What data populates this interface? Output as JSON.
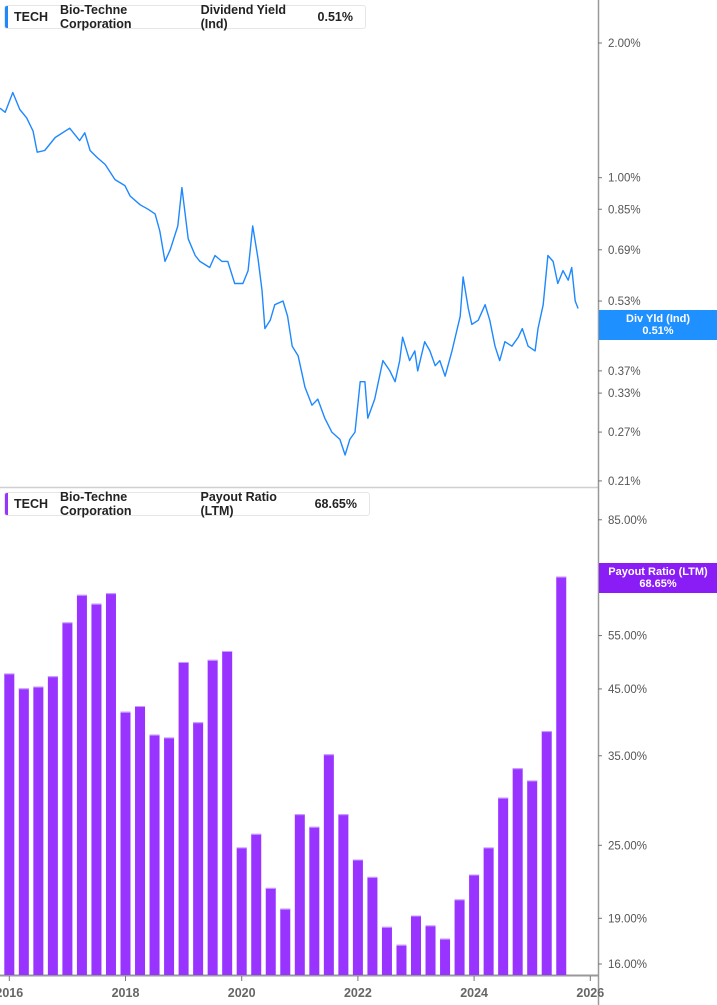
{
  "colors": {
    "yield_line": "#1e88ff",
    "payout_bar": "#9933ff",
    "yield_tag": "#1e90ff",
    "payout_tag": "#8a1cf6",
    "axis": "#999999"
  },
  "top_legend": {
    "ticker": "TECH",
    "company": "Bio-Techne Corporation",
    "metric": "Dividend Yield (Ind)",
    "value": "0.51%"
  },
  "bottom_legend": {
    "ticker": "TECH",
    "company": "Bio-Techne Corporation",
    "metric": "Payout Ratio (LTM)",
    "value": "68.65%"
  },
  "top_tag": {
    "label": "Div Yld (Ind)",
    "value": "0.51%"
  },
  "bottom_tag": {
    "label": "Payout Ratio (LTM)",
    "value": "68.65%"
  },
  "x_ticks": [
    "2016",
    "2018",
    "2020",
    "2022",
    "2024",
    "2026"
  ],
  "chart_data": [
    {
      "type": "line",
      "series": [
        {
          "name": "Dividend Yield (Ind)",
          "unit": "%"
        }
      ],
      "y_scale": "log",
      "y_ticks": [
        {
          "v": 2.0,
          "label": "2.00%"
        },
        {
          "v": 1.0,
          "label": "1.00%"
        },
        {
          "v": 0.85,
          "label": "0.85%"
        },
        {
          "v": 0.69,
          "label": "0.69%"
        },
        {
          "v": 0.53,
          "label": "0.53%"
        },
        {
          "v": 0.37,
          "label": "0.37%"
        },
        {
          "v": 0.33,
          "label": "0.33%"
        },
        {
          "v": 0.27,
          "label": "0.27%"
        },
        {
          "v": 0.21,
          "label": "0.21%"
        }
      ],
      "x": [
        2015.84,
        2015.93,
        2016.06,
        2016.18,
        2016.3,
        2016.41,
        2016.48,
        2016.61,
        2016.79,
        2017.04,
        2017.21,
        2017.3,
        2017.39,
        2017.51,
        2017.65,
        2017.82,
        2017.99,
        2018.08,
        2018.25,
        2018.39,
        2018.51,
        2018.59,
        2018.68,
        2018.77,
        2018.9,
        2018.97,
        2019.08,
        2019.2,
        2019.28,
        2019.45,
        2019.54,
        2019.66,
        2019.76,
        2019.88,
        2020.02,
        2020.11,
        2020.19,
        2020.28,
        2020.35,
        2020.4,
        2020.49,
        2020.57,
        2020.71,
        2020.79,
        2020.87,
        2020.97,
        2021.09,
        2021.21,
        2021.31,
        2021.43,
        2021.55,
        2021.69,
        2021.78,
        2021.86,
        2021.95,
        2022.04,
        2022.12,
        2022.17,
        2022.29,
        2022.43,
        2022.55,
        2022.64,
        2022.72,
        2022.77,
        2022.89,
        2022.98,
        2023.03,
        2023.15,
        2023.24,
        2023.33,
        2023.41,
        2023.5,
        2023.62,
        2023.76,
        2023.81,
        2023.9,
        2023.96,
        2024.07,
        2024.19,
        2024.27,
        2024.36,
        2024.44,
        2024.53,
        2024.65,
        2024.76,
        2024.83,
        2024.93,
        2025.05,
        2025.1,
        2025.19,
        2025.27,
        2025.36,
        2025.44,
        2025.53,
        2025.62,
        2025.68,
        2025.74,
        2025.79
      ],
      "y": [
        1.43,
        1.4,
        1.55,
        1.42,
        1.36,
        1.27,
        1.14,
        1.15,
        1.23,
        1.29,
        1.21,
        1.26,
        1.15,
        1.11,
        1.07,
        0.99,
        0.96,
        0.91,
        0.87,
        0.85,
        0.83,
        0.76,
        0.65,
        0.69,
        0.78,
        0.95,
        0.73,
        0.67,
        0.65,
        0.63,
        0.67,
        0.65,
        0.65,
        0.58,
        0.58,
        0.62,
        0.78,
        0.66,
        0.56,
        0.46,
        0.48,
        0.52,
        0.53,
        0.49,
        0.42,
        0.4,
        0.34,
        0.31,
        0.32,
        0.29,
        0.27,
        0.26,
        0.24,
        0.26,
        0.27,
        0.35,
        0.35,
        0.29,
        0.32,
        0.39,
        0.37,
        0.35,
        0.39,
        0.44,
        0.39,
        0.41,
        0.37,
        0.43,
        0.41,
        0.38,
        0.39,
        0.36,
        0.41,
        0.49,
        0.6,
        0.51,
        0.47,
        0.48,
        0.52,
        0.48,
        0.42,
        0.39,
        0.43,
        0.42,
        0.44,
        0.46,
        0.42,
        0.41,
        0.46,
        0.52,
        0.67,
        0.65,
        0.58,
        0.62,
        0.59,
        0.63,
        0.53,
        0.51
      ]
    },
    {
      "type": "bar",
      "series": [
        {
          "name": "Payout Ratio (LTM)",
          "unit": "%"
        }
      ],
      "y_scale": "log",
      "y_ticks": [
        {
          "v": 85,
          "label": "85.00%"
        },
        {
          "v": 55,
          "label": "55.00%"
        },
        {
          "v": 45,
          "label": "45.00%"
        },
        {
          "v": 35,
          "label": "35.00%"
        },
        {
          "v": 25,
          "label": "25.00%"
        },
        {
          "v": 19,
          "label": "19.00%"
        },
        {
          "v": 16,
          "label": "16.00%"
        }
      ],
      "x": [
        2016.0,
        2016.25,
        2016.5,
        2016.75,
        2017.0,
        2017.25,
        2017.5,
        2017.75,
        2018.0,
        2018.25,
        2018.5,
        2018.75,
        2019.0,
        2019.25,
        2019.5,
        2019.75,
        2020.0,
        2020.25,
        2020.5,
        2020.75,
        2021.0,
        2021.25,
        2021.5,
        2021.75,
        2022.0,
        2022.25,
        2022.5,
        2022.75,
        2023.0,
        2023.25,
        2023.5,
        2023.75,
        2024.0,
        2024.25,
        2024.5,
        2024.75,
        2025.0,
        2025.25,
        2025.5
      ],
      "values": [
        47.7,
        45.1,
        45.4,
        47.2,
        57.8,
        64.1,
        62.0,
        64.5,
        41.3,
        42.2,
        37.9,
        37.5,
        49.8,
        39.7,
        50.2,
        51.9,
        24.8,
        26.1,
        21.3,
        19.7,
        28.1,
        26.8,
        35.2,
        28.1,
        23.7,
        22.2,
        18.4,
        17.2,
        19.2,
        18.5,
        17.6,
        20.4,
        22.4,
        24.8,
        29.9,
        33.4,
        31.9,
        38.4,
        68.65
      ]
    }
  ]
}
